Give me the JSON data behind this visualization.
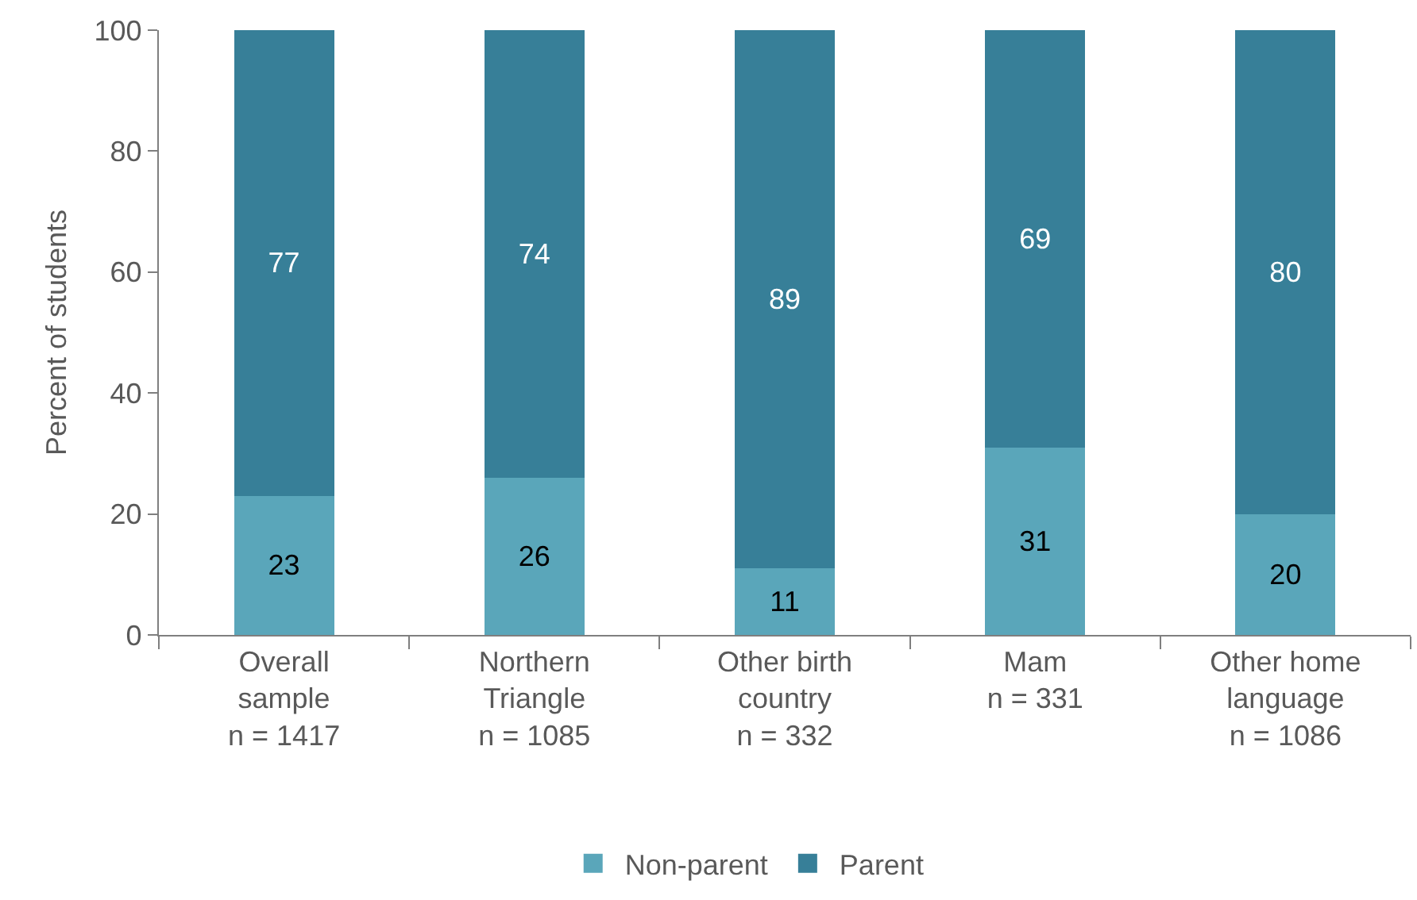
{
  "chart_data": {
    "type": "bar",
    "stacked": true,
    "ylabel": "Percent of students",
    "categories": [
      "Overall\nsample\nn = 1417",
      "Northern\nTriangle\nn = 1085",
      "Other birth\ncountry\nn = 332",
      "Mam\nn = 331",
      "Other home\nlanguage\nn = 1086"
    ],
    "series": [
      {
        "name": "Non-parent",
        "color": "#5aa6ba",
        "values": [
          23,
          26,
          11,
          31,
          20
        ]
      },
      {
        "name": "Parent",
        "color": "#377f98",
        "values": [
          77,
          74,
          89,
          69,
          80
        ]
      }
    ],
    "ylim": [
      0,
      100
    ],
    "yticks": [
      0,
      20,
      40,
      60,
      80,
      100
    ],
    "data_labels": true,
    "grid": false,
    "legend": "bottom"
  }
}
